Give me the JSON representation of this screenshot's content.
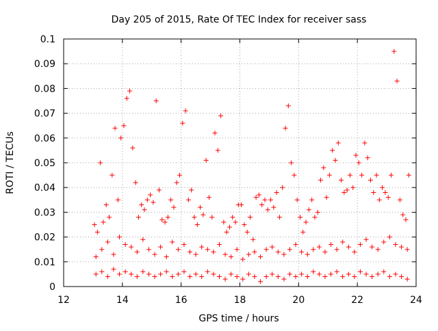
{
  "chart_data": {
    "type": "scatter",
    "title": "Day 205 of 2015, Rate Of TEC Index for receiver sass",
    "xlabel": "GPS time / hours",
    "ylabel": "ROTI / TECUs",
    "xlim": [
      12,
      24
    ],
    "ylim": [
      0,
      0.1
    ],
    "x_ticks": [
      "12",
      "14",
      "16",
      "18",
      "20",
      "22",
      "24"
    ],
    "x_tick_values": [
      12,
      14,
      16,
      18,
      20,
      22,
      24
    ],
    "y_ticks": [
      "0",
      "0.01",
      "0.02",
      "0.03",
      "0.04",
      "0.05",
      "0.06",
      "0.07",
      "0.08",
      "0.09",
      "0.1"
    ],
    "y_tick_values": [
      0,
      0.01,
      0.02,
      0.03,
      0.04,
      0.05,
      0.06,
      0.07,
      0.08,
      0.09,
      0.1
    ],
    "grid": true,
    "marker": "plus",
    "marker_color": "#ff0000",
    "series": [
      {
        "x": [
          13.05,
          13.15,
          13.25,
          13.35,
          13.45,
          13.55,
          13.65,
          13.75,
          13.85,
          13.95,
          14.05,
          14.15,
          14.25,
          14.35,
          14.45,
          14.55,
          14.65,
          14.75,
          14.85,
          14.95,
          15.05,
          15.15,
          15.25,
          15.35,
          15.45,
          15.55,
          15.65,
          15.75,
          15.85,
          15.95,
          16.05,
          16.15,
          16.25,
          16.35,
          16.45,
          16.55,
          16.65,
          16.75,
          16.85,
          16.95,
          17.05,
          17.15,
          17.25,
          17.35,
          17.45,
          17.55,
          17.65,
          17.75,
          17.85,
          17.95,
          18.05,
          18.15,
          18.25,
          18.35,
          18.45,
          18.55,
          18.65,
          18.75,
          18.85,
          18.95,
          19.05,
          19.15,
          19.25,
          19.35,
          19.45,
          19.55,
          19.65,
          19.75,
          19.85,
          19.95,
          20.05,
          20.15,
          20.25,
          20.35,
          20.45,
          20.55,
          20.65,
          20.75,
          20.85,
          20.95,
          21.05,
          21.15,
          21.25,
          21.35,
          21.45,
          21.55,
          21.65,
          21.75,
          21.85,
          21.95,
          22.05,
          22.15,
          22.25,
          22.35,
          22.45,
          22.55,
          22.65,
          22.75,
          22.85,
          22.95,
          23.05,
          23.15,
          23.25,
          23.35,
          23.45,
          23.55,
          23.65,
          23.75
        ],
        "y": [
          0.025,
          0.022,
          0.05,
          0.026,
          0.033,
          0.028,
          0.045,
          0.064,
          0.035,
          0.06,
          0.065,
          0.076,
          0.079,
          0.056,
          0.042,
          0.028,
          0.033,
          0.031,
          0.035,
          0.037,
          0.034,
          0.075,
          0.039,
          0.027,
          0.026,
          0.028,
          0.035,
          0.032,
          0.042,
          0.045,
          0.066,
          0.071,
          0.035,
          0.039,
          0.028,
          0.025,
          0.032,
          0.029,
          0.051,
          0.036,
          0.028,
          0.062,
          0.055,
          0.069,
          0.026,
          0.022,
          0.024,
          0.028,
          0.026,
          0.033,
          0.033,
          0.025,
          0.022,
          0.028,
          0.019,
          0.036,
          0.037,
          0.033,
          0.035,
          0.031,
          0.035,
          0.032,
          0.038,
          0.028,
          0.04,
          0.064,
          0.073,
          0.05,
          0.045,
          0.035,
          0.028,
          0.022,
          0.026,
          0.031,
          0.035,
          0.028,
          0.03,
          0.043,
          0.048,
          0.036,
          0.045,
          0.055,
          0.051,
          0.058,
          0.043,
          0.038,
          0.039,
          0.045,
          0.04,
          0.053,
          0.05,
          0.045,
          0.058,
          0.052,
          0.043,
          0.038,
          0.045,
          0.035,
          0.04,
          0.038,
          0.036,
          0.045,
          0.095,
          0.083,
          0.035,
          0.029,
          0.027,
          0.045
        ]
      },
      {
        "x": [
          13.1,
          13.3,
          13.5,
          13.7,
          13.9,
          14.1,
          14.3,
          14.5,
          14.7,
          14.9,
          15.1,
          15.3,
          15.5,
          15.7,
          15.9,
          16.1,
          16.3,
          16.5,
          16.7,
          16.9,
          17.1,
          17.3,
          17.5,
          17.7,
          17.9,
          18.1,
          18.3,
          18.5,
          18.7,
          18.9,
          19.1,
          19.3,
          19.5,
          19.7,
          19.9,
          20.1,
          20.3,
          20.5,
          20.7,
          20.9,
          21.1,
          21.3,
          21.5,
          21.7,
          21.9,
          22.1,
          22.3,
          22.5,
          22.7,
          22.9,
          23.1,
          23.3,
          23.5,
          23.7
        ],
        "y": [
          0.012,
          0.015,
          0.018,
          0.013,
          0.02,
          0.017,
          0.016,
          0.014,
          0.019,
          0.015,
          0.013,
          0.016,
          0.012,
          0.018,
          0.015,
          0.017,
          0.014,
          0.013,
          0.016,
          0.015,
          0.014,
          0.017,
          0.013,
          0.012,
          0.015,
          0.011,
          0.013,
          0.014,
          0.012,
          0.015,
          0.016,
          0.014,
          0.013,
          0.015,
          0.017,
          0.014,
          0.013,
          0.015,
          0.016,
          0.014,
          0.017,
          0.015,
          0.018,
          0.016,
          0.014,
          0.017,
          0.019,
          0.016,
          0.015,
          0.018,
          0.02,
          0.017,
          0.016,
          0.015
        ]
      },
      {
        "x": [
          13.1,
          13.3,
          13.5,
          13.7,
          13.9,
          14.1,
          14.3,
          14.5,
          14.7,
          14.9,
          15.1,
          15.3,
          15.5,
          15.7,
          15.9,
          16.1,
          16.3,
          16.5,
          16.7,
          16.9,
          17.1,
          17.3,
          17.5,
          17.7,
          17.9,
          18.1,
          18.3,
          18.5,
          18.7,
          18.9,
          19.1,
          19.3,
          19.5,
          19.7,
          19.9,
          20.1,
          20.3,
          20.5,
          20.7,
          20.9,
          21.1,
          21.3,
          21.5,
          21.7,
          21.9,
          22.1,
          22.3,
          22.5,
          22.7,
          22.9,
          23.1,
          23.3,
          23.5,
          23.7
        ],
        "y": [
          0.005,
          0.006,
          0.004,
          0.007,
          0.005,
          0.006,
          0.005,
          0.004,
          0.006,
          0.005,
          0.004,
          0.005,
          0.006,
          0.004,
          0.005,
          0.006,
          0.004,
          0.005,
          0.004,
          0.006,
          0.005,
          0.004,
          0.003,
          0.005,
          0.004,
          0.003,
          0.005,
          0.004,
          0.002,
          0.004,
          0.005,
          0.004,
          0.003,
          0.005,
          0.004,
          0.005,
          0.004,
          0.006,
          0.005,
          0.004,
          0.005,
          0.006,
          0.004,
          0.005,
          0.004,
          0.006,
          0.005,
          0.004,
          0.005,
          0.006,
          0.004,
          0.005,
          0.004,
          0.003
        ]
      }
    ]
  }
}
